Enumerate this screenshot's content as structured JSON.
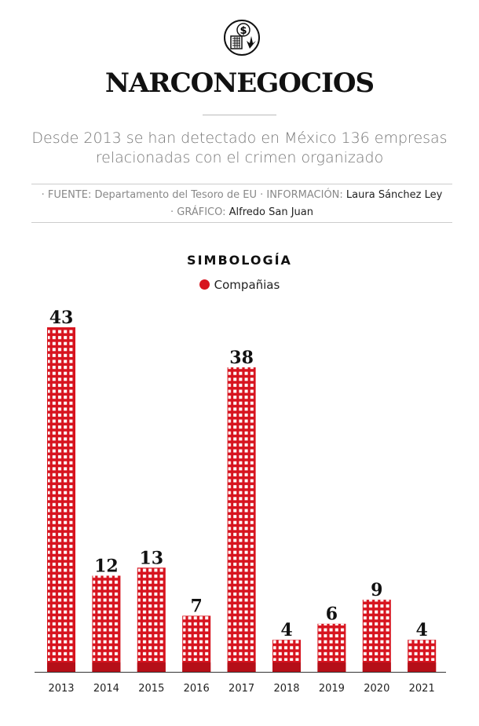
{
  "header": {
    "title": "NARCONEGOCIOS",
    "subtitle": "Desde 2013 se han detectado en México 136 empresas relacionadas con el crimen organizado",
    "logo_icon": "building-dollar-leaf-icon"
  },
  "credits": {
    "fuente_label": "· FUENTE: Departamento del Tesoro de EU · INFORMACIÓN: ",
    "fuente_value": "Laura Sánchez Ley",
    "grafico_label": "· GRÁFICO: ",
    "grafico_value": "Alfredo San Juan"
  },
  "legend": {
    "title": "SIMBOLOGÍA",
    "item": "Compañias"
  },
  "colors": {
    "bar": "#d7141f",
    "bar_base": "#b50f18"
  },
  "chart_data": {
    "type": "bar",
    "categories": [
      "2013",
      "2014",
      "2015",
      "2016",
      "2017",
      "2018",
      "2019",
      "2020",
      "2021"
    ],
    "series": [
      {
        "name": "Compañias",
        "values": [
          43,
          12,
          13,
          7,
          38,
          4,
          6,
          9,
          4
        ]
      }
    ],
    "ylim": [
      0,
      43
    ],
    "grid": false,
    "legend": "top-center"
  }
}
